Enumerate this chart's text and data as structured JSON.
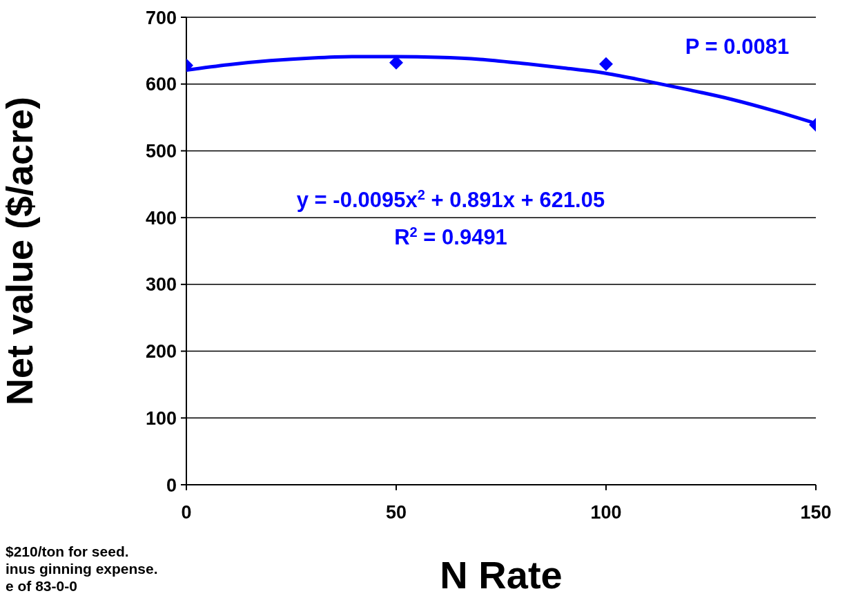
{
  "chart_data": {
    "type": "scatter",
    "xlabel": "N Rate",
    "ylabel": "Net value ($/acre)",
    "series": [
      {
        "color": "#0000ff",
        "marker": "diamond",
        "x": [
          0,
          50,
          100,
          150
        ],
        "values": [
          628,
          632,
          630,
          539
        ]
      },
      {
        "type": "line",
        "color": "#0000ff",
        "marker": "none",
        "x": [
          0,
          10,
          20,
          30,
          40,
          50,
          60,
          70,
          80,
          90,
          100,
          110,
          120,
          130,
          140,
          150
        ],
        "values": [
          621,
          629,
          635,
          639,
          641,
          641,
          640,
          637,
          631,
          624,
          616,
          604,
          591,
          577,
          560,
          541
        ]
      }
    ],
    "grid": "y",
    "xlim": [
      0,
      150
    ],
    "ylim": [
      0,
      700
    ],
    "xticks": [
      0,
      50,
      100,
      150
    ],
    "yticks": [
      0,
      100,
      200,
      300,
      400,
      500,
      600,
      700
    ],
    "annotations": [
      "y = -0.0095x$^{2}$ + 0.891x + 621.05",
      "R$^{2}$ = 0.9491",
      "P = 0.0081",
      "$210/ton for seed.",
      "inus ginning expense.",
      "e of 83-0-0"
    ]
  }
}
